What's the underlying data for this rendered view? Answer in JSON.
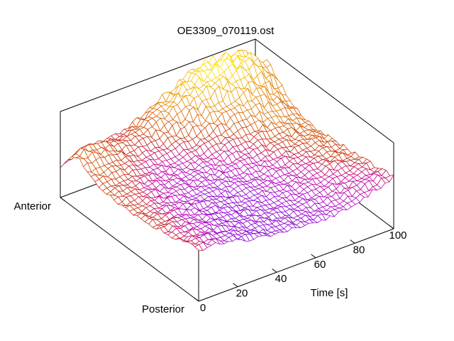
{
  "title": "OE3309_070119.ost",
  "chart_data": {
    "type": "surface3d-wireframe",
    "title": "OE3309_070119.ost",
    "x_axis": {
      "label": "Time [s]",
      "min": 0,
      "max": 100,
      "ticks": [
        0,
        20,
        40,
        60,
        80,
        100
      ]
    },
    "y_axis": {
      "front_label": "Posterior",
      "back_label": "Anterior"
    },
    "z_axis": {
      "ticks_visible": false
    },
    "legend": "none",
    "surface": {
      "grid_cols_u": 13,
      "grid_rows_v": 11,
      "u_domain": [
        0,
        100
      ],
      "v_domain": [
        "Posterior",
        "Anterior"
      ],
      "height_grid_normalized": [
        [
          0.6,
          0.6,
          0.56,
          0.51,
          0.46,
          0.44,
          0.43,
          0.42,
          0.41,
          0.43,
          0.48,
          0.54,
          0.6
        ],
        [
          0.56,
          0.57,
          0.54,
          0.5,
          0.46,
          0.44,
          0.43,
          0.42,
          0.42,
          0.44,
          0.48,
          0.54,
          0.58
        ],
        [
          0.52,
          0.54,
          0.52,
          0.49,
          0.46,
          0.44,
          0.43,
          0.43,
          0.43,
          0.45,
          0.49,
          0.53,
          0.55
        ],
        [
          0.49,
          0.51,
          0.5,
          0.48,
          0.46,
          0.44,
          0.44,
          0.44,
          0.45,
          0.46,
          0.5,
          0.53,
          0.53
        ],
        [
          0.46,
          0.48,
          0.48,
          0.47,
          0.46,
          0.45,
          0.45,
          0.45,
          0.46,
          0.48,
          0.51,
          0.53,
          0.52
        ],
        [
          0.44,
          0.46,
          0.47,
          0.46,
          0.46,
          0.46,
          0.46,
          0.47,
          0.48,
          0.5,
          0.52,
          0.53,
          0.5
        ],
        [
          0.44,
          0.46,
          0.46,
          0.46,
          0.46,
          0.47,
          0.48,
          0.51,
          0.54,
          0.56,
          0.56,
          0.54,
          0.5
        ],
        [
          0.46,
          0.48,
          0.48,
          0.47,
          0.47,
          0.49,
          0.53,
          0.59,
          0.64,
          0.67,
          0.67,
          0.62,
          0.55
        ],
        [
          0.52,
          0.54,
          0.53,
          0.51,
          0.51,
          0.55,
          0.62,
          0.71,
          0.79,
          0.84,
          0.85,
          0.78,
          0.66
        ],
        [
          0.62,
          0.63,
          0.59,
          0.56,
          0.58,
          0.66,
          0.76,
          0.86,
          0.93,
          0.98,
          1.0,
          0.97,
          0.82
        ],
        [
          0.34,
          0.47,
          0.5,
          0.48,
          0.52,
          0.6,
          0.7,
          0.8,
          0.88,
          0.93,
          0.95,
          0.9,
          0.76
        ]
      ],
      "color_grid_normalized": [
        [
          0.5,
          0.35,
          0.2,
          0.15,
          0.14,
          0.14,
          0.15,
          0.18,
          0.22,
          0.28,
          0.34,
          0.4,
          0.46
        ],
        [
          0.5,
          0.36,
          0.22,
          0.16,
          0.14,
          0.14,
          0.16,
          0.19,
          0.24,
          0.3,
          0.36,
          0.42,
          0.48
        ],
        [
          0.51,
          0.4,
          0.26,
          0.18,
          0.15,
          0.15,
          0.18,
          0.22,
          0.27,
          0.33,
          0.41,
          0.48,
          0.52
        ],
        [
          0.52,
          0.43,
          0.3,
          0.21,
          0.17,
          0.18,
          0.21,
          0.25,
          0.3,
          0.37,
          0.46,
          0.54,
          0.57
        ],
        [
          0.53,
          0.45,
          0.34,
          0.25,
          0.2,
          0.21,
          0.24,
          0.29,
          0.35,
          0.42,
          0.51,
          0.58,
          0.6
        ],
        [
          0.55,
          0.48,
          0.38,
          0.3,
          0.25,
          0.26,
          0.29,
          0.34,
          0.41,
          0.48,
          0.56,
          0.62,
          0.62
        ],
        [
          0.56,
          0.51,
          0.43,
          0.35,
          0.31,
          0.32,
          0.37,
          0.43,
          0.5,
          0.57,
          0.63,
          0.66,
          0.64
        ],
        [
          0.58,
          0.55,
          0.48,
          0.42,
          0.4,
          0.43,
          0.49,
          0.56,
          0.64,
          0.7,
          0.73,
          0.71,
          0.66
        ],
        [
          0.6,
          0.6,
          0.55,
          0.5,
          0.5,
          0.55,
          0.63,
          0.72,
          0.8,
          0.85,
          0.85,
          0.79,
          0.7
        ],
        [
          0.62,
          0.63,
          0.58,
          0.55,
          0.58,
          0.66,
          0.77,
          0.87,
          0.94,
          0.98,
          0.97,
          0.89,
          0.76
        ],
        [
          0.42,
          0.5,
          0.52,
          0.5,
          0.55,
          0.62,
          0.73,
          0.84,
          0.9,
          0.95,
          0.93,
          0.85,
          0.72
        ]
      ],
      "palette_stops": [
        [
          0.0,
          "#6a00c8"
        ],
        [
          0.18,
          "#9400d3"
        ],
        [
          0.32,
          "#b800b8"
        ],
        [
          0.42,
          "#c4008f"
        ],
        [
          0.5,
          "#c81e28"
        ],
        [
          0.58,
          "#cc3a00"
        ],
        [
          0.7,
          "#dd6f00"
        ],
        [
          0.82,
          "#ee9900"
        ],
        [
          0.92,
          "#f5c400"
        ],
        [
          1.0,
          "#ffee00"
        ]
      ],
      "render": {
        "mesh_nu": 46,
        "mesh_nv": 36,
        "noise_base": 0.012,
        "noise_zscale": 0.055,
        "color_noise": 0.05,
        "seed": 11
      }
    },
    "colors": {
      "border": "#000000",
      "text": "#000000",
      "background": "#ffffff"
    }
  }
}
